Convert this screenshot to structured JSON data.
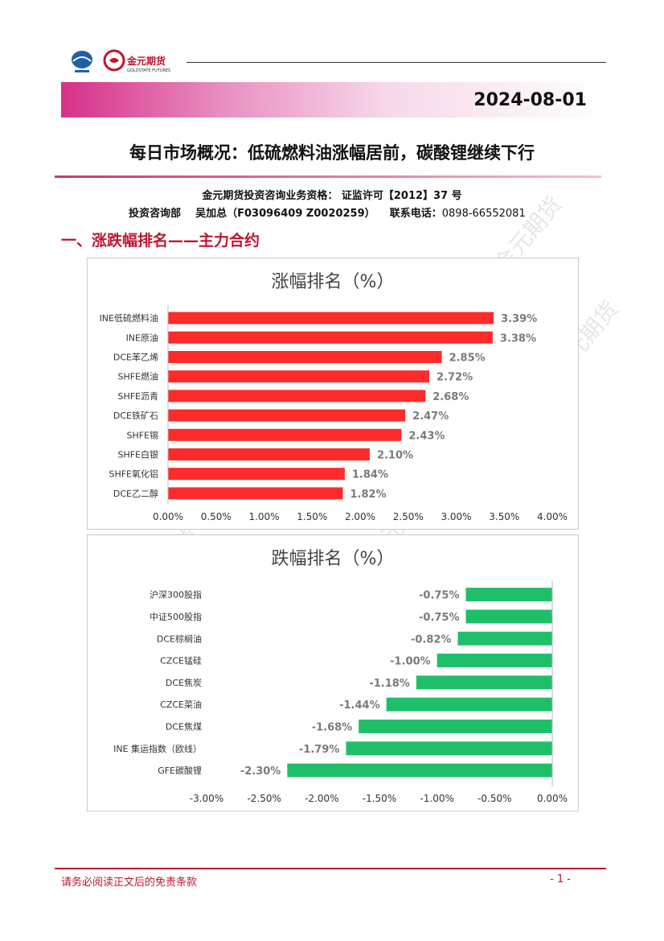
{
  "header": {
    "logo_text_1": "金元期货",
    "logo_text_2": "GOLDSTATE FUTURES",
    "date": "2024-08-01"
  },
  "title": "每日市场概况：低硫燃料油涨幅居前，碳酸锂继续下行",
  "info": {
    "line1": "金元期货投资咨询业务资格： 证监许可【2012】37 号",
    "dept": "投资咨询部",
    "analyst": "吴加总（F03096409 Z0020259）",
    "tel_label": "联系电话：",
    "tel": "0898-66552081"
  },
  "section1": "一、涨跌幅排名——主力合约",
  "watermark": "金元期货",
  "colors": {
    "up": "#ff2a2a",
    "down": "#1fbf6a",
    "accent": "#c0152f"
  },
  "chart_data": [
    {
      "type": "bar",
      "orientation": "horizontal",
      "title": "涨幅排名（%）",
      "categories": [
        "INE低硫燃料油",
        "INE原油",
        "DCE苯乙烯",
        "SHFE燃油",
        "SHFE沥青",
        "DCE铁矿石",
        "SHFE锡",
        "SHFE白银",
        "SHFE氧化铝",
        "DCE乙二醇"
      ],
      "values": [
        3.39,
        3.38,
        2.85,
        2.72,
        2.68,
        2.47,
        2.43,
        2.1,
        1.84,
        1.82
      ],
      "labels": [
        "3.39%",
        "3.38%",
        "2.85%",
        "2.72%",
        "2.68%",
        "2.47%",
        "2.43%",
        "2.10%",
        "1.84%",
        "1.82%"
      ],
      "xlim": [
        0,
        4
      ],
      "ticks": [
        "0.00%",
        "0.50%",
        "1.00%",
        "1.50%",
        "2.00%",
        "2.50%",
        "3.00%",
        "3.50%",
        "4.00%"
      ],
      "grid": false
    },
    {
      "type": "bar",
      "orientation": "horizontal",
      "title": "跌幅排名（%）",
      "categories": [
        "沪深300股指",
        "中证500股指",
        "DCE棕榈油",
        "CZCE锰硅",
        "DCE焦炭",
        "CZCE菜油",
        "DCE焦煤",
        "INE 集运指数（欧线）",
        "GFE碳酸锂"
      ],
      "values": [
        -0.75,
        -0.75,
        -0.82,
        -1.0,
        -1.18,
        -1.44,
        -1.68,
        -1.79,
        -2.3
      ],
      "labels": [
        "-0.75%",
        "-0.75%",
        "-0.82%",
        "-1.00%",
        "-1.18%",
        "-1.44%",
        "-1.68%",
        "-1.79%",
        "-2.30%"
      ],
      "xlim": [
        -3,
        0
      ],
      "ticks": [
        "-3.00%",
        "-2.50%",
        "-2.00%",
        "-1.50%",
        "-1.00%",
        "-0.50%",
        "0.00%"
      ],
      "grid": false
    }
  ],
  "footer": {
    "disclaimer": "请务必阅读正文后的免责条款",
    "page": "- 1 -"
  }
}
